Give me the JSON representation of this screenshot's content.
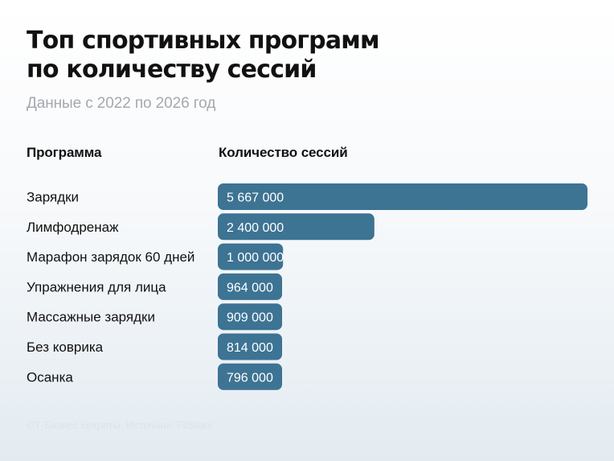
{
  "header": {
    "title_line1": "Топ спортивных программ",
    "title_line2": "по количеству сессий",
    "subtitle": "Данные с 2022 по 2026 год"
  },
  "columns": {
    "program": "Программа",
    "sessions": "Количество сессий"
  },
  "footnote": "©Т-Бизнес секреты. Источник: FitStars",
  "colors": {
    "bar": "#3d7393",
    "bar_text": "#ffffff",
    "label_text": "#111111"
  },
  "chart_data": {
    "type": "bar",
    "orientation": "horizontal",
    "title": "Топ спортивных программ по количеству сессий",
    "subtitle": "Данные с 2022 по 2026 год",
    "xlabel": "Количество сессий",
    "ylabel": "Программа",
    "categories": [
      "Зарядки",
      "Лимфодренаж",
      "Марафон зарядок 60 дней",
      "Упражнения для лица",
      "Массажные зарядки",
      "Без коврика",
      "Осанка"
    ],
    "values": [
      5667000,
      2400000,
      1000000,
      964000,
      909000,
      814000,
      796000
    ],
    "value_labels": [
      "5 667 000",
      "2 400 000",
      "1 000 000",
      "964 000",
      "909 000",
      "814 000",
      "796 000"
    ],
    "xlim": [
      0,
      5667000
    ],
    "grid": false,
    "legend": false
  }
}
